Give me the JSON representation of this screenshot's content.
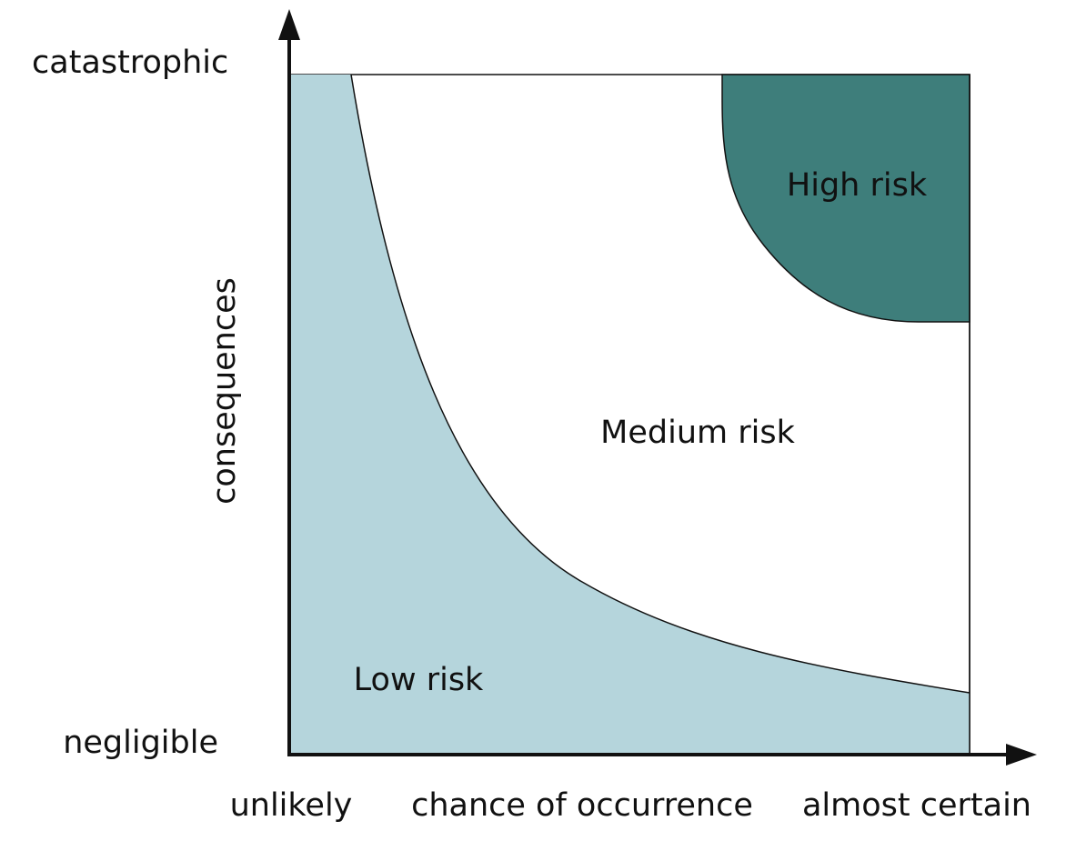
{
  "axes": {
    "y_label": "consequences",
    "y_top": "catastrophic",
    "y_bottom": "negligible",
    "x_label": "chance of occurrence",
    "x_left": "unlikely",
    "x_right": "almost certain"
  },
  "regions": {
    "high": "High risk",
    "medium": "Medium risk",
    "low": "Low risk"
  }
}
